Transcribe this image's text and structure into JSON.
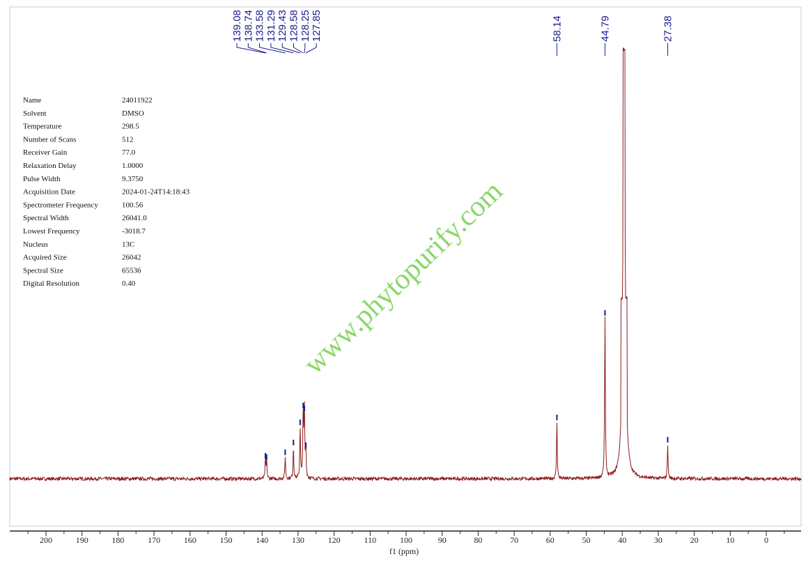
{
  "chart_data": {
    "type": "line",
    "title": "",
    "xlabel": "f1 (ppm)",
    "ylabel": "",
    "xlim": [
      210,
      -10
    ],
    "x_reversed": true,
    "xticks": [
      200,
      190,
      180,
      170,
      160,
      150,
      140,
      130,
      120,
      110,
      100,
      90,
      80,
      70,
      60,
      50,
      40,
      30,
      20,
      10,
      0
    ],
    "grid": false,
    "line_color": "#8b1a1a",
    "label_color": "#1a1a8c",
    "peaks": [
      {
        "ppm": 139.08,
        "intensity": 27,
        "label": "139.08"
      },
      {
        "ppm": 138.74,
        "intensity": 25,
        "label": "138.74"
      },
      {
        "ppm": 133.58,
        "intensity": 32,
        "label": "133.58"
      },
      {
        "ppm": 131.29,
        "intensity": 46,
        "label": "131.29"
      },
      {
        "ppm": 129.43,
        "intensity": 75,
        "label": "129.43"
      },
      {
        "ppm": 128.58,
        "intensity": 99,
        "label": "128.58"
      },
      {
        "ppm": 128.25,
        "intensity": 95,
        "label": "128.25"
      },
      {
        "ppm": 127.85,
        "intensity": 42,
        "label": "127.85"
      },
      {
        "ppm": 58.14,
        "intensity": 82,
        "label": "58.14"
      },
      {
        "ppm": 44.79,
        "intensity": 232,
        "label": "44.79"
      },
      {
        "ppm": 39.5,
        "intensity": 617,
        "label": ""
      },
      {
        "ppm": 27.38,
        "intensity": 50,
        "label": "27.38"
      }
    ],
    "intensity_max": 640
  },
  "parameters": [
    {
      "name": "Name",
      "value": "24011922"
    },
    {
      "name": "Solvent",
      "value": "DMSO"
    },
    {
      "name": "Temperature",
      "value": "298.5"
    },
    {
      "name": "Number of Scans",
      "value": "512"
    },
    {
      "name": "Receiver Gain",
      "value": "77.0"
    },
    {
      "name": "Relaxation Delay",
      "value": "1.0000"
    },
    {
      "name": "Pulse Width",
      "value": "9.3750"
    },
    {
      "name": "Acquisition Date",
      "value": "2024-01-24T14:18:43"
    },
    {
      "name": "Spectrometer Frequency",
      "value": "100.56"
    },
    {
      "name": "Spectral Width",
      "value": "26041.0"
    },
    {
      "name": "Lowest Frequency",
      "value": "-3018.7"
    },
    {
      "name": "Nucleus",
      "value": "13C"
    },
    {
      "name": "Acquired Size",
      "value": "26042"
    },
    {
      "name": "Spectral Size",
      "value": "65536"
    },
    {
      "name": "Digital Resolution",
      "value": "0.40"
    }
  ],
  "watermark": "www.phytopurify.com"
}
